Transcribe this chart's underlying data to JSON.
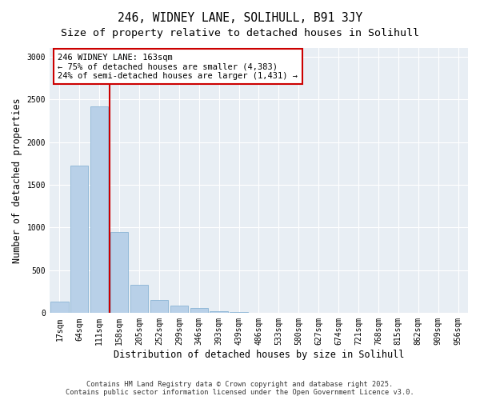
{
  "title1": "246, WIDNEY LANE, SOLIHULL, B91 3JY",
  "title2": "Size of property relative to detached houses in Solihull",
  "xlabel": "Distribution of detached houses by size in Solihull",
  "ylabel": "Number of detached properties",
  "categories": [
    "17sqm",
    "64sqm",
    "111sqm",
    "158sqm",
    "205sqm",
    "252sqm",
    "299sqm",
    "346sqm",
    "393sqm",
    "439sqm",
    "486sqm",
    "533sqm",
    "580sqm",
    "627sqm",
    "674sqm",
    "721sqm",
    "768sqm",
    "815sqm",
    "862sqm",
    "909sqm",
    "956sqm"
  ],
  "values": [
    130,
    1720,
    2420,
    950,
    330,
    150,
    90,
    55,
    25,
    12,
    5,
    2,
    2,
    0,
    0,
    0,
    0,
    0,
    0,
    0,
    0
  ],
  "bar_color": "#b8d0e8",
  "bar_edge_color": "#8ab4d4",
  "vline_x_idx": 2.5,
  "vline_color": "#cc0000",
  "annotation_text": "246 WIDNEY LANE: 163sqm\n← 75% of detached houses are smaller (4,383)\n24% of semi-detached houses are larger (1,431) →",
  "annotation_box_color": "#ffffff",
  "annotation_box_edge": "#cc0000",
  "ylim": [
    0,
    3100
  ],
  "yticks": [
    0,
    500,
    1000,
    1500,
    2000,
    2500,
    3000
  ],
  "background_color": "#e8eef4",
  "footnote": "Contains HM Land Registry data © Crown copyright and database right 2025.\nContains public sector information licensed under the Open Government Licence v3.0.",
  "title_fontsize": 10.5,
  "subtitle_fontsize": 9.5,
  "tick_fontsize": 7,
  "label_fontsize": 8.5,
  "annot_fontsize": 7.5
}
